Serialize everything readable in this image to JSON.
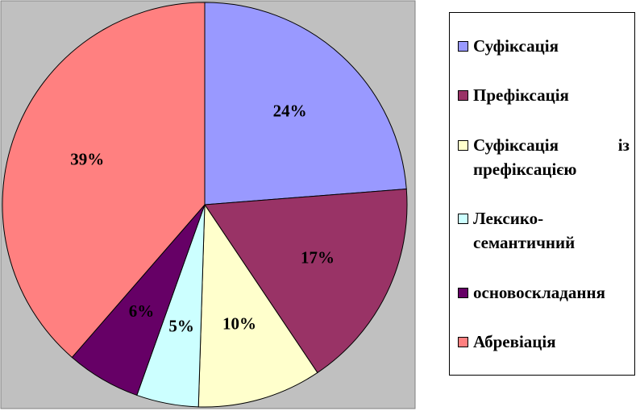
{
  "chart_data": {
    "type": "pie",
    "categories": [
      "Суфіксація",
      "Префіксація",
      "Суфіксація із префіксацією",
      "Лексико-семантичний",
      "основоскладання",
      "Абревіація"
    ],
    "values": [
      24,
      17,
      10,
      5,
      6,
      39
    ],
    "value_labels": [
      "24%",
      "17%",
      "10%",
      "5%",
      "6%",
      "39%"
    ],
    "colors": [
      "#9999FF",
      "#993366",
      "#FFFFCC",
      "#CCFFFF",
      "#660066",
      "#FF8080"
    ],
    "legend": "right"
  }
}
